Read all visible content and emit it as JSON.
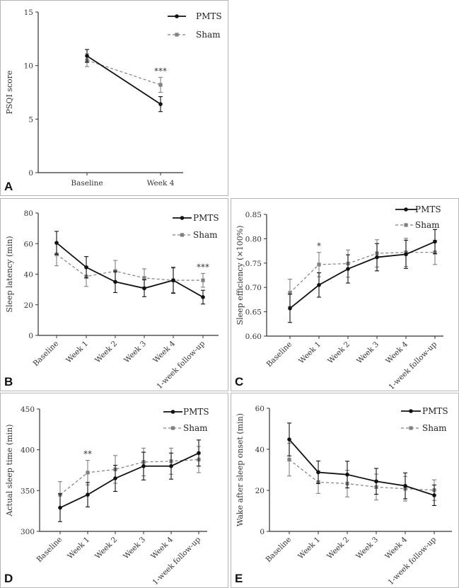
{
  "colors": {
    "pmts": "#111111",
    "sham": "#808080"
  },
  "chart_data": [
    {
      "panel": "A",
      "type": "line",
      "ylabel": "PSQI score",
      "ylim": [
        0,
        15
      ],
      "yticks": [
        "0",
        "5",
        "10",
        "15"
      ],
      "ytick_values": [
        0,
        5,
        10,
        15
      ],
      "categories": [
        "Baseline",
        "Week 4"
      ],
      "rotate_labels": false,
      "series": [
        {
          "name": "PMTS",
          "values": [
            10.9,
            6.4
          ],
          "errors": [
            0.6,
            0.7
          ]
        },
        {
          "name": "Sham",
          "values": [
            10.5,
            8.2
          ],
          "errors": [
            0.6,
            0.7
          ]
        }
      ],
      "annotations": [
        {
          "category": "Week 4",
          "text": "***"
        }
      ],
      "legend": "top-right"
    },
    {
      "panel": "B",
      "type": "line",
      "ylabel": "Sleep latency (min)",
      "ylim": [
        0,
        80
      ],
      "yticks": [
        "0",
        "20",
        "40",
        "60",
        "80"
      ],
      "ytick_values": [
        0,
        20,
        40,
        60,
        80
      ],
      "categories": [
        "Baseline",
        "Week 1",
        "Week 2",
        "Week 3",
        "Week 4",
        "1-week follow-up"
      ],
      "rotate_labels": true,
      "series": [
        {
          "name": "PMTS",
          "values": [
            60.5,
            44.5,
            35.0,
            30.8,
            36.0,
            25.0
          ],
          "errors": [
            7.5,
            7.0,
            7.0,
            5.5,
            8.5,
            4.5
          ]
        },
        {
          "name": "Sham",
          "values": [
            53.0,
            38.5,
            42.0,
            37.5,
            36.0,
            36.0
          ],
          "errors": [
            7.5,
            6.5,
            7.0,
            6.0,
            8.0,
            4.5
          ]
        }
      ],
      "annotations": [
        {
          "category": "1-week follow-up",
          "text": "***"
        }
      ],
      "legend": "top-right"
    },
    {
      "panel": "C",
      "type": "line",
      "ylabel": "Sleep efficiency (×100%)",
      "ylim": [
        0.6,
        0.85
      ],
      "yticks": [
        "0.60",
        "0.65",
        "0.70",
        "0.75",
        "0.80",
        "0.85"
      ],
      "ytick_values": [
        0.6,
        0.65,
        0.7,
        0.75,
        0.8,
        0.85
      ],
      "categories": [
        "Baseline",
        "Week 1",
        "Week 2",
        "Week 3",
        "Week 4",
        "1-week follow-up"
      ],
      "rotate_labels": true,
      "series": [
        {
          "name": "PMTS",
          "values": [
            0.657,
            0.705,
            0.738,
            0.762,
            0.768,
            0.794
          ],
          "errors": [
            0.029,
            0.025,
            0.029,
            0.028,
            0.029,
            0.025
          ]
        },
        {
          "name": "Sham",
          "values": [
            0.689,
            0.747,
            0.749,
            0.77,
            0.772,
            0.772
          ],
          "errors": [
            0.028,
            0.025,
            0.028,
            0.028,
            0.029,
            0.025
          ]
        }
      ],
      "annotations": [
        {
          "category": "Week 1",
          "text": "*"
        }
      ],
      "legend": "top-right"
    },
    {
      "panel": "D",
      "type": "line",
      "ylabel": "Actual sleep time (min)",
      "ylim": [
        300,
        450
      ],
      "yticks": [
        "300",
        "350",
        "400",
        "450"
      ],
      "ytick_values": [
        300,
        350,
        400,
        450
      ],
      "categories": [
        "Baseline",
        "Week 1",
        "Week 2",
        "Week 3",
        "Week 4",
        "1-week follow-up"
      ],
      "rotate_labels": true,
      "series": [
        {
          "name": "PMTS",
          "values": [
            329,
            345,
            365,
            380,
            380,
            396
          ],
          "errors": [
            17,
            15,
            16,
            17,
            16,
            16
          ]
        },
        {
          "name": "Sham",
          "values": [
            345,
            372,
            376,
            385,
            386,
            388
          ],
          "errors": [
            16,
            15,
            17,
            17,
            16,
            16
          ]
        }
      ],
      "annotations": [
        {
          "category": "Week 1",
          "text": "**"
        }
      ],
      "legend": "top-right"
    },
    {
      "panel": "E",
      "type": "line",
      "ylabel": "Wake after sleep onset (min)",
      "ylim": [
        0,
        60
      ],
      "yticks": [
        "0",
        "20",
        "40",
        "60"
      ],
      "ytick_values": [
        0,
        20,
        40,
        60
      ],
      "categories": [
        "Baseline",
        "Week 1",
        "Week 2",
        "Week 3",
        "Week 4",
        "1-week follow-up"
      ],
      "rotate_labels": true,
      "series": [
        {
          "name": "PMTS",
          "values": [
            44.8,
            28.8,
            27.7,
            24.4,
            22.2,
            17.6
          ],
          "errors": [
            8.0,
            5.5,
            6.5,
            6.3,
            6.3,
            5.0
          ]
        },
        {
          "name": "Sham",
          "values": [
            35.0,
            24.0,
            23.3,
            21.6,
            20.8,
            20.1
          ],
          "errors": [
            8.0,
            5.5,
            6.5,
            6.3,
            6.0,
            5.0
          ]
        }
      ],
      "annotations": [],
      "legend": "top-right"
    }
  ]
}
